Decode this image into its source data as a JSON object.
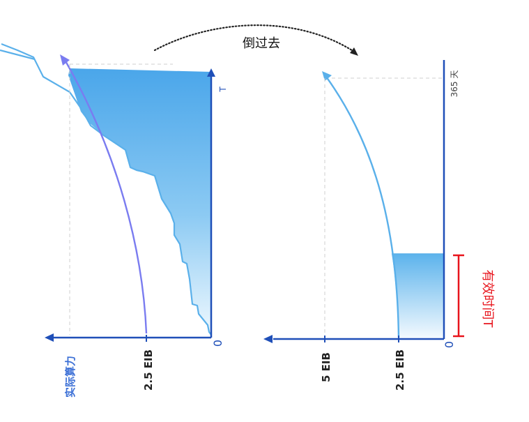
{
  "title_arrow_label": "倒过去",
  "left_panel": {
    "x_axis_label": "实际算力",
    "origin_label": "0",
    "tick_label": "2.5 EIB",
    "y_axis_label": "T"
  },
  "right_panel": {
    "origin_label": "0",
    "tick_label_1": "2.5 EIB",
    "tick_label_2": "5 EIB",
    "top_label": "365 天",
    "bracket_label": "有效时间T"
  },
  "colors": {
    "axis": "#1f4fb8",
    "fill_top": "#4fa8ea",
    "fill_bottom": "#e6f4fd",
    "curve_light": "#5ab0ea",
    "curve_purple": "#7a7cf0",
    "left_label_blue": "#3b6fd6",
    "bracket_red": "#e8141c",
    "guide": "#c8c8c8"
  }
}
